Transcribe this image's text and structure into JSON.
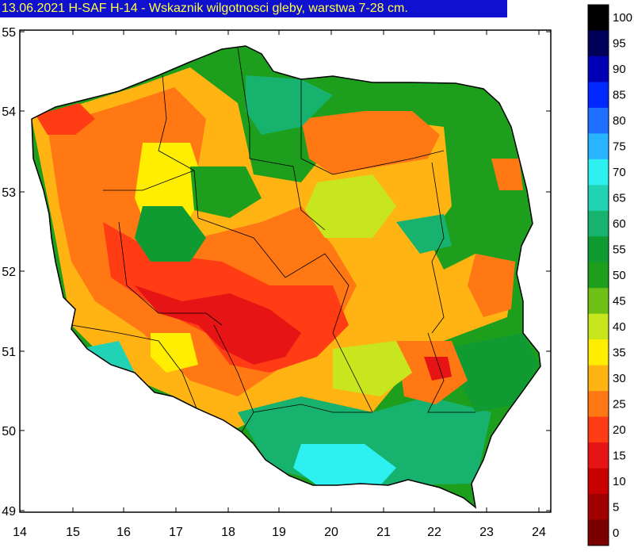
{
  "title": "13.06.2021 H-SAF H-14 - Wskaznik wilgotnosci gleby, warstwa 7-28 cm.",
  "axes": {
    "x_ticks": [
      "14",
      "15",
      "16",
      "17",
      "18",
      "19",
      "20",
      "21",
      "22",
      "23",
      "24"
    ],
    "y_ticks": [
      "55",
      "54",
      "53",
      "52",
      "51",
      "50",
      "49"
    ]
  },
  "legend": {
    "levels": [
      {
        "value": "100",
        "color": "#000000"
      },
      {
        "value": "95",
        "color": "#00005a"
      },
      {
        "value": "90",
        "color": "#0000b4"
      },
      {
        "value": "85",
        "color": "#0028ff"
      },
      {
        "value": "80",
        "color": "#1e6eff"
      },
      {
        "value": "75",
        "color": "#28b4ff"
      },
      {
        "value": "70",
        "color": "#2ef0f0"
      },
      {
        "value": "65",
        "color": "#22d2b4"
      },
      {
        "value": "60",
        "color": "#17b26e"
      },
      {
        "value": "55",
        "color": "#0f9a32"
      },
      {
        "value": "50",
        "color": "#1d9e1d"
      },
      {
        "value": "45",
        "color": "#6ec014"
      },
      {
        "value": "40",
        "color": "#c8e61e"
      },
      {
        "value": "35",
        "color": "#ffee00"
      },
      {
        "value": "30",
        "color": "#ffb414"
      },
      {
        "value": "25",
        "color": "#ff7814"
      },
      {
        "value": "20",
        "color": "#ff3c14"
      },
      {
        "value": "15",
        "color": "#e61414"
      },
      {
        "value": "10",
        "color": "#c80000"
      },
      {
        "value": "5",
        "color": "#a00000"
      },
      {
        "value": "0",
        "color": "#7a0000"
      }
    ]
  },
  "colors": {
    "title_background": "#1010d0",
    "title_text": "#ffff40"
  }
}
